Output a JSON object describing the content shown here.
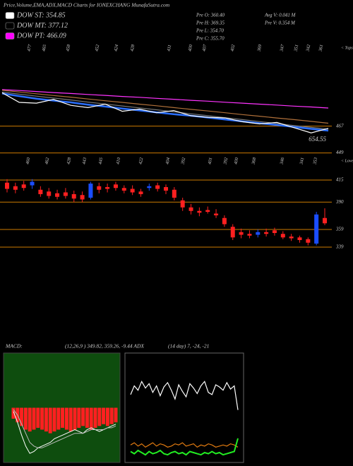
{
  "header": {
    "title": "Price,Volume,EMA,ADX,MACD Charts for IONEXCHANG MunafaSutra.com"
  },
  "legend": [
    {
      "name": "DOW ST: 354.85",
      "color": "#ffffff"
    },
    {
      "name": "DOW MT: 377.12",
      "color": "#000000"
    },
    {
      "name": "DOW PT: 466.09",
      "color": "#ff00ff"
    }
  ],
  "info": [
    "Pre O: 360.40",
    "Pre H: 369.35",
    "Pre L: 354.70",
    "Pre C: 355.70",
    "Avg V: 0.041 M",
    "Pre V: 0.354 M"
  ],
  "chart_data": [
    {
      "type": "line",
      "tops_label": "< Tops",
      "top_labels": [
        "477",
        "465",
        "458",
        "452",
        "424",
        "428",
        "411",
        "400",
        "407",
        "402",
        "369",
        "347",
        "351",
        "342",
        "361"
      ],
      "ylim": [
        445,
        502
      ],
      "yticks": [
        467,
        449
      ],
      "price_label": "654.55",
      "level_color": "#cc7a00",
      "series": [
        {
          "color": "#ff33ff",
          "values": [
            491.6,
            491.0,
            490.3,
            489.6,
            489.0,
            488.3,
            487.7,
            487.0,
            486.4,
            485.7,
            485.1,
            484.4,
            483.8,
            483.1,
            482.5,
            481.8,
            481.2,
            480.5,
            479.9,
            479.2
          ]
        },
        {
          "color": "#b0703a",
          "values": [
            491.1,
            490.0,
            488.8,
            487.6,
            486.5,
            485.3,
            484.1,
            483.0,
            481.8,
            480.7,
            479.5,
            478.3,
            477.2,
            476.0,
            474.8,
            473.7,
            472.5,
            471.4,
            470.2,
            469.0
          ]
        },
        {
          "color": "#777777",
          "values": [
            490.0,
            488.5,
            487.2,
            485.9,
            484.6,
            483.2,
            481.9,
            480.6,
            479.3,
            478.0,
            476.7,
            475.3,
            474.0,
            472.7,
            471.4,
            470.1,
            468.8,
            467.4,
            466.2,
            465.0
          ]
        },
        {
          "color": "#2a6fff",
          "values": [
            489.0,
            487.2,
            485.5,
            484.2,
            483.0,
            481.5,
            480.2,
            478.8,
            477.6,
            476.3,
            475.0,
            474.0,
            472.8,
            471.5,
            470.2,
            469.0,
            467.8,
            466.5,
            465.2,
            464.0
          ]
        },
        {
          "color": "#ffffff",
          "values": [
            489.5,
            483.0,
            482.5,
            485.0,
            481.0,
            479.5,
            481.8,
            477.0,
            478.5,
            476.0,
            477.5,
            474.0,
            473.0,
            472.5,
            470.0,
            468.5,
            469.5,
            466.0,
            462.5,
            465.5
          ]
        }
      ]
    },
    {
      "type": "candlestick",
      "lows_label": "< Lows",
      "low_labels": [
        "460",
        "462",
        "428",
        "443",
        "445",
        "410",
        "422",
        "404",
        "392",
        "401",
        "392",
        "400",
        "368",
        "346",
        "341",
        "353"
      ],
      "ylim": [
        319,
        439
      ],
      "yticks": [
        415,
        390,
        359,
        339
      ],
      "level_color": "#cc7a00",
      "up_color": "#1a4dff",
      "down_color": "#ff2020",
      "open": [
        412,
        408,
        410,
        409,
        404,
        402,
        400,
        401,
        399,
        398,
        395,
        408,
        407,
        410,
        406,
        405,
        402,
        406,
        409,
        407,
        404,
        392,
        384,
        380,
        381,
        377,
        372,
        362,
        356,
        354,
        353,
        356,
        358,
        354,
        351,
        350,
        348,
        343,
        372
      ],
      "high": [
        416,
        412,
        414,
        416,
        408,
        406,
        404,
        406,
        403,
        402,
        413,
        412,
        411,
        413,
        409,
        409,
        405,
        411,
        412,
        410,
        407,
        395,
        388,
        384,
        385,
        382,
        375,
        365,
        360,
        358,
        359,
        360,
        361,
        357,
        354,
        352,
        350,
        379,
        383
      ],
      "low": [
        401,
        400,
        403,
        405,
        396,
        394,
        393,
        394,
        390,
        390,
        393,
        400,
        401,
        403,
        400,
        398,
        396,
        403,
        402,
        399,
        392,
        380,
        376,
        374,
        377,
        372,
        362,
        347,
        349,
        349,
        350,
        351,
        352,
        348,
        346,
        344,
        341,
        341,
        364
      ],
      "close": [
        405,
        404,
        406,
        413,
        399,
        397,
        396,
        397,
        394,
        393,
        411,
        404,
        405,
        406,
        403,
        401,
        399,
        408,
        405,
        403,
        395,
        384,
        380,
        378,
        379,
        375,
        365,
        350,
        353,
        352,
        356,
        354,
        355,
        350,
        349,
        347,
        344,
        376,
        366
      ]
    },
    {
      "type": "macd",
      "title": "MACD:",
      "params": "(12,26,9 ) 349.82, 359.26, -9.44 ADX",
      "ylim": [
        -30,
        30
      ],
      "background": "#0e4d0e",
      "hist_color": "#ff2020",
      "histogram": [
        -6,
        -8,
        -10,
        -12,
        -13,
        -12,
        -11,
        -12,
        -13,
        -14,
        -13,
        -12,
        -11,
        -12,
        -13,
        -12,
        -11,
        -10,
        -11,
        -12,
        -11,
        -10,
        -9,
        -10,
        -9,
        -8
      ],
      "macd": [
        -2,
        -8,
        -15,
        -21,
        -25,
        -24,
        -22,
        -21,
        -20,
        -19,
        -17,
        -16,
        -15,
        -14,
        -13,
        -12,
        -13,
        -14,
        -12,
        -11,
        -12,
        -13,
        -12,
        -11,
        -10,
        -9
      ],
      "signal": [
        -1,
        -4,
        -9,
        -14,
        -19,
        -21,
        -22,
        -22,
        -21,
        -20,
        -19,
        -18,
        -17,
        -16,
        -15,
        -14,
        -14,
        -14,
        -13,
        -12,
        -12,
        -12,
        -12,
        -11,
        -11,
        -10
      ]
    },
    {
      "type": "adx",
      "params": "(14 day) 7, -24, -21",
      "ylim": [
        0,
        100
      ],
      "series": [
        {
          "color": "#ffffff",
          "values": [
            62,
            70,
            66,
            74,
            68,
            72,
            64,
            70,
            61,
            69,
            73,
            66,
            58,
            71,
            65,
            60,
            72,
            68,
            63,
            70,
            74,
            64,
            62,
            71,
            69,
            66,
            73,
            67,
            70,
            48
          ]
        },
        {
          "color": "#e07a10",
          "values": [
            16,
            18,
            15,
            17,
            14,
            16,
            18,
            15,
            17,
            16,
            14,
            15,
            17,
            16,
            18,
            15,
            16,
            17,
            14,
            16,
            15,
            17,
            16,
            14,
            15,
            16,
            15,
            17,
            16,
            14
          ]
        },
        {
          "color": "#22ee22",
          "values": [
            10,
            8,
            11,
            9,
            7,
            10,
            8,
            9,
            11,
            8,
            7,
            9,
            10,
            8,
            9,
            7,
            10,
            9,
            8,
            7,
            9,
            8,
            10,
            8,
            9,
            7,
            8,
            9,
            10,
            22
          ]
        }
      ]
    }
  ]
}
